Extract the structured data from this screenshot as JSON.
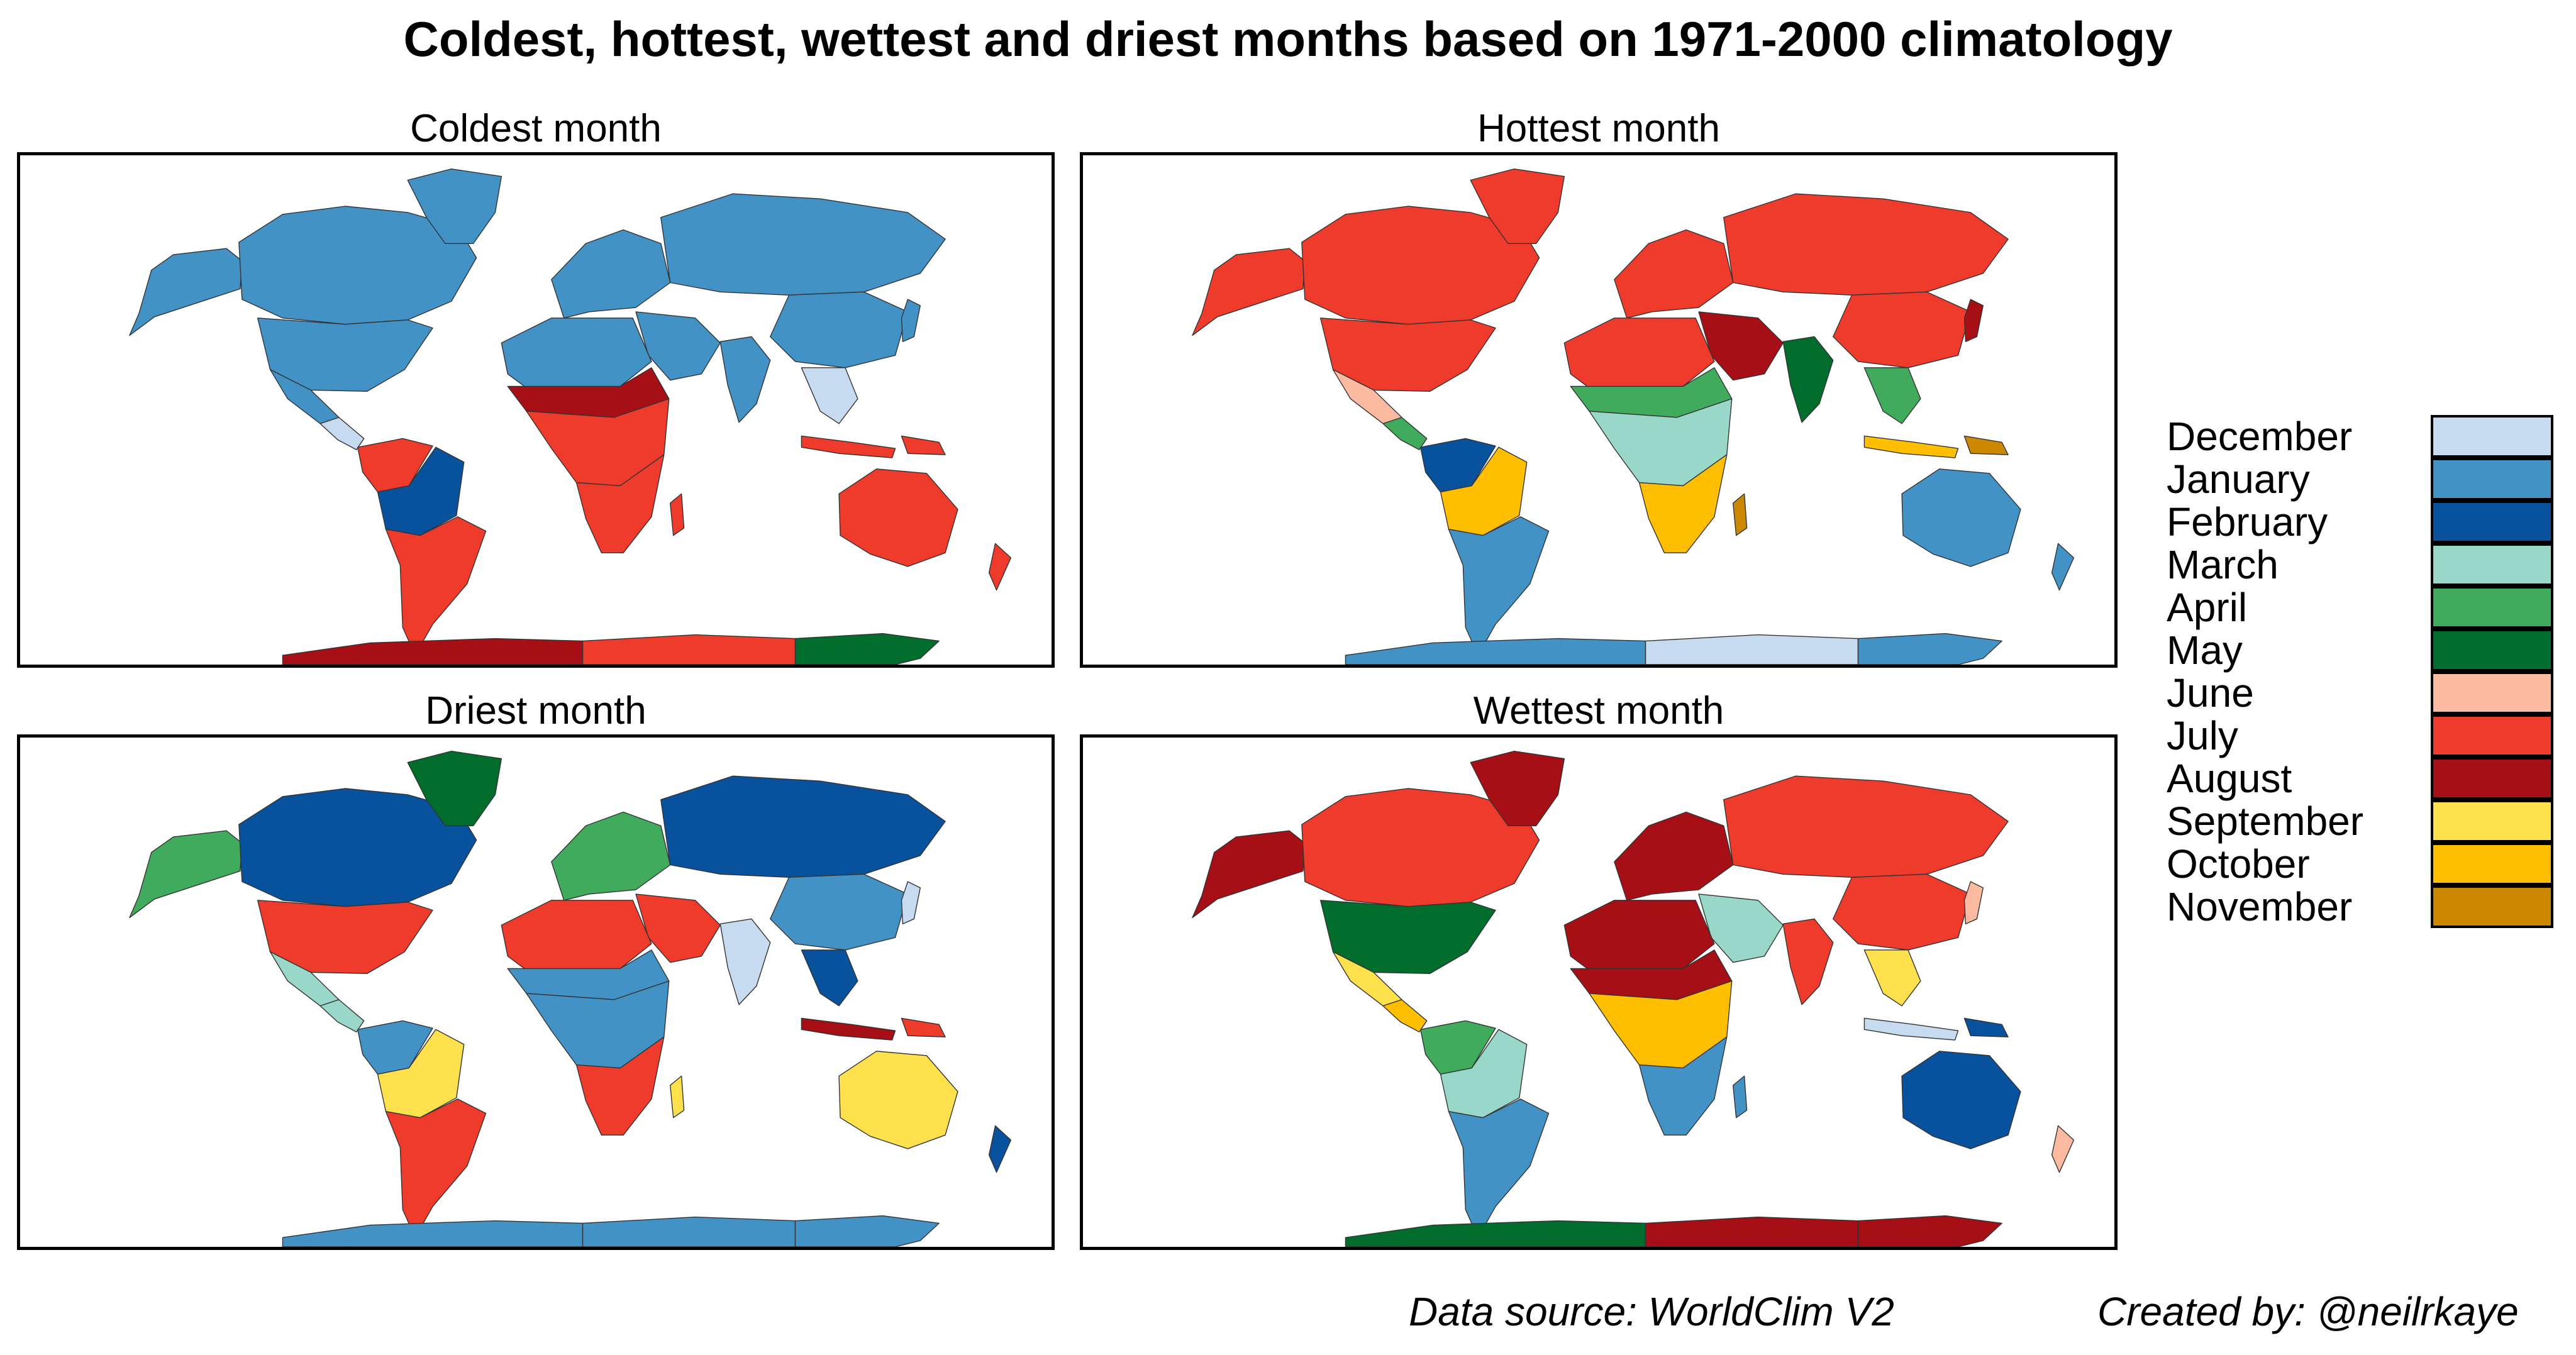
{
  "title": "Coldest, hottest, wettest and driest months based on 1971-2000 climatology",
  "months": [
    {
      "name": "December",
      "color": "#c6dbef"
    },
    {
      "name": "January",
      "color": "#4292c6"
    },
    {
      "name": "February",
      "color": "#08519c"
    },
    {
      "name": "March",
      "color": "#99d8c9"
    },
    {
      "name": "April",
      "color": "#41ab5d"
    },
    {
      "name": "May",
      "color": "#006d2c"
    },
    {
      "name": "June",
      "color": "#fcbba1"
    },
    {
      "name": "July",
      "color": "#ef3b2c"
    },
    {
      "name": "August",
      "color": "#a50f15"
    },
    {
      "name": "September",
      "color": "#ffe14d"
    },
    {
      "name": "October",
      "color": "#ffbe00"
    },
    {
      "name": "November",
      "color": "#cc8800"
    }
  ],
  "panels": [
    {
      "id": "coldest",
      "title": "Coldest month",
      "regions": {
        "alaska": "January",
        "canada": "January",
        "greenland": "January",
        "usa": "January",
        "mexico": "January",
        "central_america": "December",
        "nw_south_america": "July",
        "amazon": "February",
        "south_america": "July",
        "europe": "January",
        "russia": "January",
        "middle_east": "January",
        "north_africa": "January",
        "sahel": "August",
        "central_africa": "July",
        "southern_africa": "July",
        "madagascar": "July",
        "india": "January",
        "china": "January",
        "southeast_asia": "December",
        "japan": "January",
        "indonesia": "July",
        "new_guinea": "July",
        "australia": "July",
        "new_zealand": "July",
        "antarctica_west": "August",
        "antarctica_mid": "July",
        "antarctica_east": "May"
      }
    },
    {
      "id": "hottest",
      "title": "Hottest month",
      "regions": {
        "alaska": "July",
        "canada": "July",
        "greenland": "July",
        "usa": "July",
        "mexico": "June",
        "central_america": "April",
        "nw_south_america": "February",
        "amazon": "October",
        "south_america": "January",
        "europe": "July",
        "russia": "July",
        "middle_east": "August",
        "north_africa": "July",
        "sahel": "April",
        "central_africa": "March",
        "southern_africa": "October",
        "madagascar": "November",
        "india": "May",
        "china": "July",
        "southeast_asia": "April",
        "japan": "August",
        "indonesia": "October",
        "new_guinea": "November",
        "australia": "January",
        "new_zealand": "January",
        "antarctica_west": "January",
        "antarctica_mid": "December",
        "antarctica_east": "January"
      }
    },
    {
      "id": "driest",
      "title": "Driest month",
      "regions": {
        "alaska": "April",
        "canada": "February",
        "greenland": "May",
        "usa": "July",
        "mexico": "March",
        "central_america": "March",
        "nw_south_america": "January",
        "amazon": "September",
        "south_america": "July",
        "europe": "April",
        "russia": "February",
        "middle_east": "July",
        "north_africa": "July",
        "sahel": "January",
        "central_africa": "January",
        "southern_africa": "July",
        "madagascar": "September",
        "india": "December",
        "china": "January",
        "southeast_asia": "February",
        "japan": "December",
        "indonesia": "August",
        "new_guinea": "July",
        "australia": "September",
        "new_zealand": "February",
        "antarctica_west": "January",
        "antarctica_mid": "January",
        "antarctica_east": "January"
      }
    },
    {
      "id": "wettest",
      "title": "Wettest month",
      "regions": {
        "alaska": "August",
        "canada": "July",
        "greenland": "August",
        "usa": "May",
        "mexico": "September",
        "central_america": "October",
        "nw_south_america": "April",
        "amazon": "March",
        "south_america": "January",
        "europe": "August",
        "russia": "July",
        "middle_east": "March",
        "north_africa": "August",
        "sahel": "August",
        "central_africa": "October",
        "southern_africa": "January",
        "madagascar": "January",
        "india": "July",
        "china": "July",
        "southeast_asia": "September",
        "japan": "June",
        "indonesia": "December",
        "new_guinea": "February",
        "australia": "February",
        "new_zealand": "June",
        "antarctica_west": "May",
        "antarctica_mid": "August",
        "antarctica_east": "August"
      }
    }
  ],
  "credits": {
    "source": "Data source: WorldClim V2",
    "author": "Created by: @neilrkaye"
  }
}
